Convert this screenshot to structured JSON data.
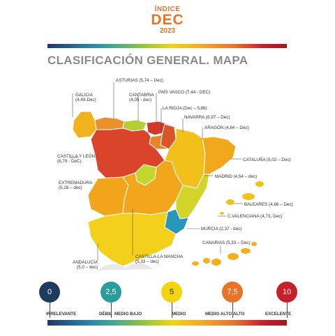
{
  "header": {
    "indice": "ÍNDICE",
    "dec": "DEC",
    "year": "2023"
  },
  "title": "CLASIFICACIÓN GENERAL. MAPA",
  "colors": {
    "accent": "#e8732b",
    "scale_0": "#1f3a5f",
    "scale_25": "#2a9d9b",
    "scale_5": "#f2d50f",
    "scale_75": "#e8732b",
    "scale_10": "#c8202a"
  },
  "regions": [
    {
      "name": "GALICIA",
      "value": "(4,49-Dec)",
      "color": "#f2b21b"
    },
    {
      "name": "ASTURIAS",
      "value": "(5,74 – Dec)",
      "color": "#e8922b"
    },
    {
      "name": "CANTABRIA",
      "value": "(4,05 - dec)",
      "color": "#b4cf35"
    },
    {
      "name": "PAÍS VASCO",
      "value": "(7,44 - DEC)",
      "color": "#d3382a"
    },
    {
      "name": "LA RIOJA",
      "value": "(Dec – 5,86)",
      "color": "#e8852b"
    },
    {
      "name": "NAVARRA",
      "value": "(6,97 – Dec)",
      "color": "#d8562a"
    },
    {
      "name": "ARAGÓN",
      "value": "(4,84 – Dec)",
      "color": "#f2c01b"
    },
    {
      "name": "CATALUÑA",
      "value": "(5,02 – Dec)",
      "color": "#f2a81b"
    },
    {
      "name": "CASTILLA Y LEÓN",
      "value": "(6,79 - DeC)",
      "color": "#d9442a"
    },
    {
      "name": "MADRID",
      "value": "(4,54 – dec)",
      "color": "#c4d62c"
    },
    {
      "name": "EXTREMADURA",
      "value": "(5,28 – dec)",
      "color": "#f2a51b"
    },
    {
      "name": "BALEARES",
      "value": "(4,86 – Dec)",
      "color": "#f2c21b"
    },
    {
      "name": "C.VALENCIANA",
      "value": "(4,73, Dec)",
      "color": "#d2d42a"
    },
    {
      "name": "MURCIA",
      "value": "(2,37 - dec)",
      "color": "#2a96b8"
    },
    {
      "name": "CANARIAS",
      "value": "(5,33 – Dec)",
      "color": "#f2b01b"
    },
    {
      "name": "ANDALUCÍA",
      "value": "(5,0 – dec)",
      "color": "#f2d01b"
    },
    {
      "name": "CASTILLA-LA MANCHA",
      "value": "(5,33 – dec)",
      "color": "#f2a61b"
    }
  ],
  "labels": {
    "asturias": "ASTURIAS (5,74 – Dec)",
    "galicia_1": "GALICIA",
    "galicia_2": "(4,49-Dec)",
    "cantabria_1": "CANTABRIA",
    "cantabria_2": "(4,05 - dec)",
    "pais_vasco": "PAÍS VASCO (7,44 - DEC)",
    "la_rioja": "LA RIOJA (Dec – 5,86)",
    "navarra": "NAVARRA (6,97 – Dec)",
    "aragon": "ARAGÓN (4,84 – Dec)",
    "cataluna": "CATALUÑA (5,02 – Dec)",
    "cyl_1": "CASTILLA Y LEÓN",
    "cyl_2": "(6,79 - DeC)",
    "madrid": "MADRID (4,54 – dec)",
    "extremadura_1": "EXTREMADURA",
    "extremadura_2": "(5,28 – dec)",
    "baleares": "BALEARES (4,86 – Dec)",
    "cvalenciana": "C.VALENCIANA (4,73, Dec)",
    "murcia": "MURCIA (2,37 - dec)",
    "canarias": "CANARIAS (5,33 – Dec)",
    "andalucia_1": "ANDALUCÍA",
    "andalucia_2": "(5,0 – dec)",
    "clm_1": "CASTILLA-LA MANCHA",
    "clm_2": "(5,33 – dec)"
  },
  "scale": {
    "points": [
      "0",
      "2,5",
      "5",
      "7,5",
      "10"
    ],
    "labels": [
      "IRRELEVANTE",
      "DÉBIL",
      "MEDIO BAJO",
      "MEDIO",
      "MEDIO ALTO",
      "ALTO",
      "EXCELENTE"
    ]
  }
}
